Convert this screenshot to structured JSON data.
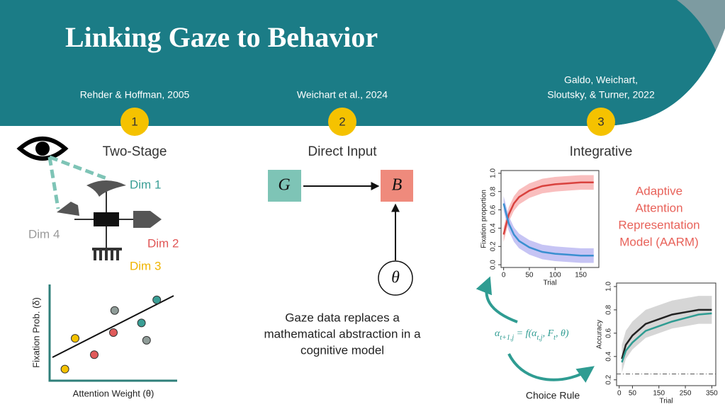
{
  "title": "Linking Gaze to Behavior",
  "columns": [
    {
      "citation_lines": [
        "Rehder & Hoffman, 2005"
      ],
      "number": "1",
      "heading": "Two-Stage"
    },
    {
      "citation_lines": [
        "Weichart et al., 2024"
      ],
      "number": "2",
      "heading": "Direct Input"
    },
    {
      "citation_lines": [
        "Galdo, Weichart,",
        "Sloutsky, & Turner, 2022"
      ],
      "number": "3",
      "heading": "Integrative"
    }
  ],
  "two_stage": {
    "dimensions": [
      "Dim 1",
      "Dim 2",
      "Dim 3",
      "Dim 4"
    ],
    "scatter": {
      "x_label": "Attention Weight (θ)",
      "y_label": "Fixation Prob. (δ)",
      "points": [
        {
          "x": 1.2,
          "y": 1.2,
          "color": "#f5c200"
        },
        {
          "x": 2.0,
          "y": 4.4,
          "color": "#f5c200"
        },
        {
          "x": 3.5,
          "y": 2.7,
          "color": "#e05a5a"
        },
        {
          "x": 5.0,
          "y": 5.0,
          "color": "#e05a5a"
        },
        {
          "x": 5.1,
          "y": 7.3,
          "color": "#8f9c98"
        },
        {
          "x": 7.2,
          "y": 6.0,
          "color": "#3a9e95"
        },
        {
          "x": 7.6,
          "y": 4.2,
          "color": "#8f9c98"
        },
        {
          "x": 8.4,
          "y": 8.4,
          "color": "#3a9e95"
        }
      ]
    }
  },
  "direct_input": {
    "nodes": [
      "G",
      "B",
      "θ"
    ],
    "caption_lines": [
      "Gaze data replaces a",
      "mathematical abstraction in a",
      "cognitive model"
    ]
  },
  "integrative": {
    "model_lines": [
      "Adaptive",
      "Attention",
      "Representation",
      "Model (AARM)"
    ],
    "equation": [
      {
        "text": "α",
        "sub": "t+1,j"
      },
      {
        "text": " = f(α",
        "sub": "t,j"
      },
      {
        "text": ", F",
        "sub": "t"
      },
      {
        "text": ", θ)"
      }
    ],
    "choice_label": "Choice Rule",
    "fixation_chart": {
      "type": "line",
      "x_label": "Trial",
      "y_label": "Fixation proportion",
      "x": [
        0,
        10,
        20,
        30,
        50,
        75,
        100,
        125,
        150,
        175
      ],
      "series": [
        {
          "color": "#d9423e",
          "band_color": "#f7a8a8",
          "spread": 0.08,
          "values": [
            0.33,
            0.55,
            0.67,
            0.74,
            0.81,
            0.86,
            0.88,
            0.89,
            0.9,
            0.9
          ]
        },
        {
          "color": "#3a8fd0",
          "band_color": "#b3b0f0",
          "spread": 0.08,
          "values": [
            0.67,
            0.45,
            0.33,
            0.26,
            0.19,
            0.14,
            0.12,
            0.11,
            0.1,
            0.1
          ]
        }
      ],
      "xlim": [
        -5,
        185
      ],
      "xticks": [
        0,
        50,
        100,
        150
      ],
      "ylim": [
        -0.03,
        1.03
      ],
      "yticks": [
        {
          "value": 0,
          "label": "0.0"
        },
        {
          "value": 0.2,
          "label": "0.2"
        },
        {
          "value": 0.4,
          "label": "0.4"
        },
        {
          "value": 0.6,
          "label": "0.6"
        },
        {
          "value": 0.8,
          "label": "0.8"
        },
        {
          "value": 1,
          "label": "1.0"
        }
      ]
    },
    "accuracy_chart": {
      "type": "line",
      "x_label": "Trial",
      "y_label": "Accuracy",
      "x": [
        10,
        25,
        50,
        75,
        100,
        150,
        200,
        250,
        300,
        350
      ],
      "series": [
        {
          "color": "#222222",
          "band_color": "#c8c8c8",
          "spread": 0.12,
          "values": [
            0.38,
            0.5,
            0.58,
            0.63,
            0.68,
            0.72,
            0.76,
            0.78,
            0.8,
            0.8
          ]
        },
        {
          "color": "#2f9c92",
          "values": [
            0.35,
            0.45,
            0.52,
            0.57,
            0.62,
            0.66,
            0.7,
            0.73,
            0.76,
            0.77
          ]
        }
      ],
      "chance": 0.25,
      "xlim": [
        -10,
        365
      ],
      "xticks": [
        0,
        50,
        150,
        250,
        350
      ],
      "ylim": [
        0.15,
        1.03
      ],
      "yticks": [
        0.2,
        0.4,
        0.6,
        0.8,
        {
          "value": 1,
          "label": "1.0"
        }
      ]
    }
  }
}
